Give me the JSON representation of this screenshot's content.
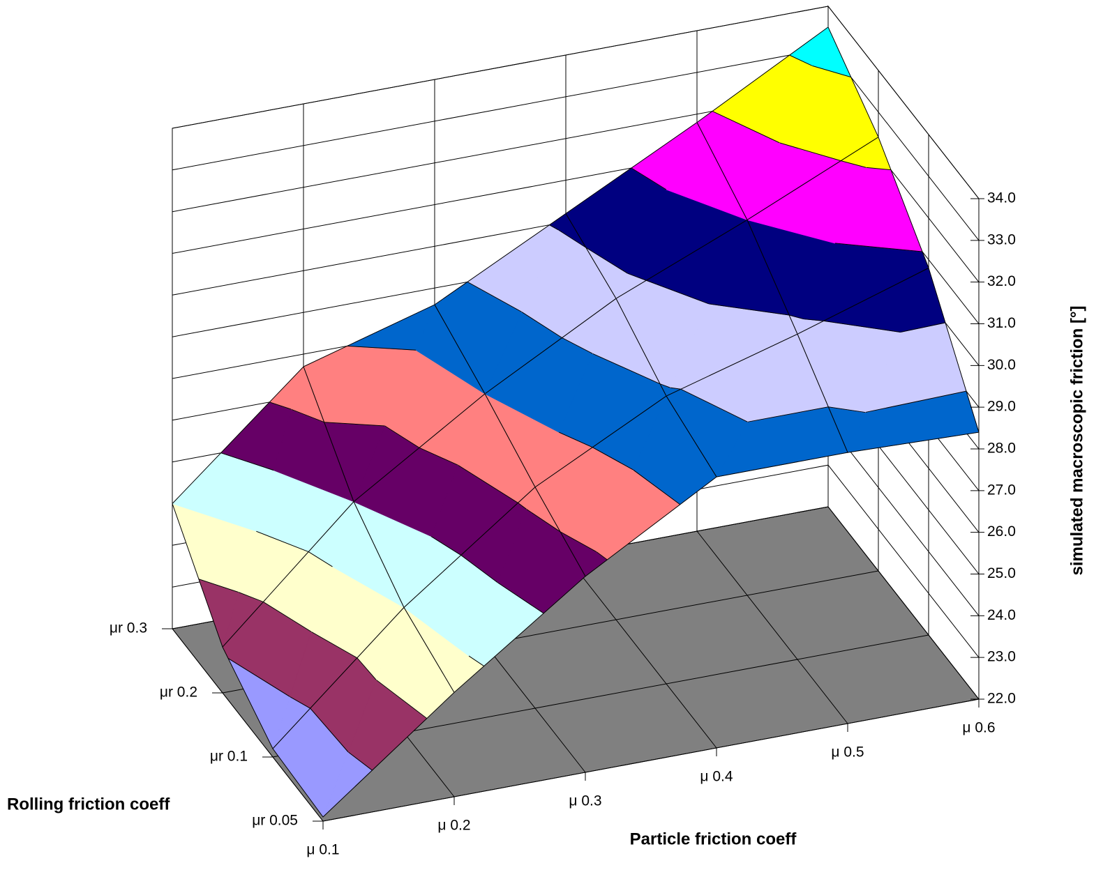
{
  "chart_data": {
    "type": "surface",
    "x_axis_label": "Particle friction coeff",
    "y_axis_label": "Rolling friction coeff",
    "z_axis_label": "simulated macroscopic friction [°]",
    "x": [
      "μ 0.1",
      "μ 0.2",
      "μ 0.3",
      "μ 0.4",
      "μ 0.5",
      "μ 0.6"
    ],
    "y": [
      "μr 0.05",
      "μr 0.1",
      "μr 0.2",
      "μr 0.3"
    ],
    "z": [
      [
        22.1,
        24.5,
        26.7,
        28.5,
        28.5,
        28.4
      ],
      [
        22.2,
        25.0,
        27.3,
        28.9,
        29.8,
        30.8
      ],
      [
        23.1,
        26.0,
        28.0,
        29.7,
        31.0,
        32.4
      ],
      [
        25.0,
        27.7,
        28.6,
        30.2,
        31.8,
        33.5
      ]
    ],
    "zlim": [
      22,
      34
    ],
    "zticks": [
      {
        "value": 22,
        "label": "22.0"
      },
      {
        "value": 23,
        "label": "23.0"
      },
      {
        "value": 24,
        "label": "24.0"
      },
      {
        "value": 25,
        "label": "25.0"
      },
      {
        "value": 26,
        "label": "26.0"
      },
      {
        "value": 27,
        "label": "27.0"
      },
      {
        "value": 28,
        "label": "28.0"
      },
      {
        "value": 29,
        "label": "29.0"
      },
      {
        "value": 30,
        "label": "30.0"
      },
      {
        "value": 31,
        "label": "31.0"
      },
      {
        "value": 32,
        "label": "32.0"
      },
      {
        "value": 33,
        "label": "33.0"
      },
      {
        "value": 34,
        "label": "34.0"
      }
    ],
    "band_colors": [
      "#9999ff",
      "#993366",
      "#ffffcc",
      "#ccffff",
      "#660066",
      "#ff8080",
      "#0066cc",
      "#ccccff",
      "#000080",
      "#ff00ff",
      "#ffff00",
      "#00ffff"
    ]
  }
}
